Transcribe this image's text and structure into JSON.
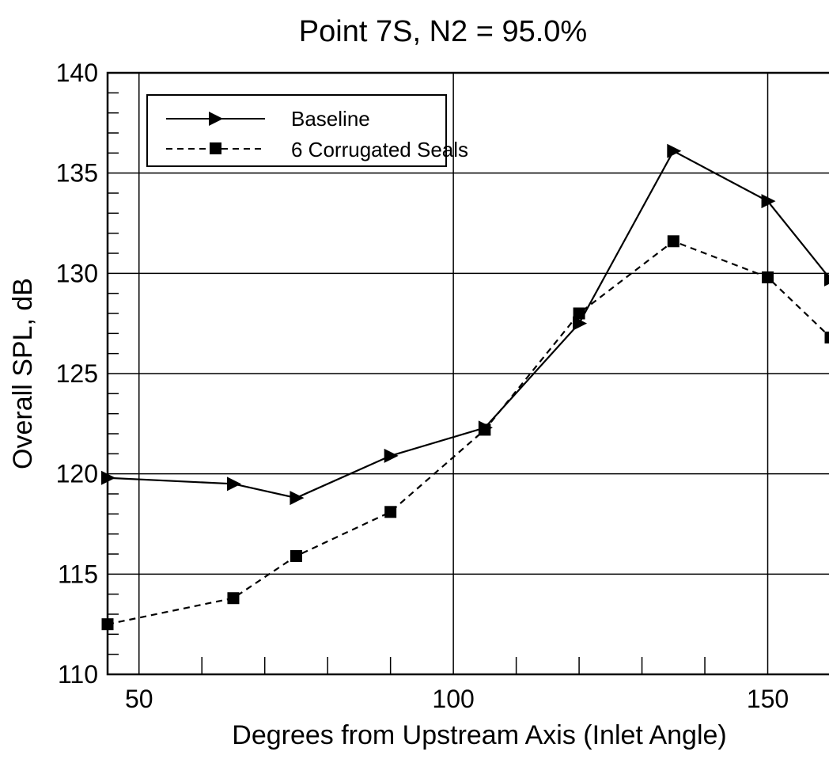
{
  "chart_data": {
    "type": "line",
    "title": "Point 7S,  N2 = 95.0%",
    "xlabel": "Degrees from Upstream Axis (Inlet Angle)",
    "ylabel": "Overall SPL, dB",
    "xlim": [
      45,
      160
    ],
    "ylim": [
      110,
      140
    ],
    "x_ticks": [
      50,
      100,
      150
    ],
    "x_tick_labels": [
      "50",
      "100",
      "150"
    ],
    "y_ticks": [
      110,
      115,
      120,
      125,
      130,
      135,
      140
    ],
    "y_tick_labels": [
      "110",
      "115",
      "120",
      "125",
      "130",
      "135",
      "140"
    ],
    "grid": true,
    "legend_position": "top-left",
    "series": [
      {
        "name": "Baseline",
        "line_style": "solid",
        "marker": "triangle-right",
        "color": "#000000",
        "x": [
          45,
          65,
          75,
          90,
          105,
          120,
          135,
          150,
          160
        ],
        "y": [
          119.8,
          119.5,
          118.8,
          120.9,
          122.3,
          127.5,
          136.1,
          133.6,
          129.7
        ]
      },
      {
        "name": "6 Corrugated Seals",
        "line_style": "dashed",
        "marker": "square",
        "color": "#000000",
        "x": [
          45,
          65,
          75,
          90,
          105,
          120,
          135,
          150,
          160
        ],
        "y": [
          112.5,
          113.8,
          115.9,
          118.1,
          122.2,
          128.0,
          131.6,
          129.8,
          126.8
        ]
      }
    ]
  }
}
